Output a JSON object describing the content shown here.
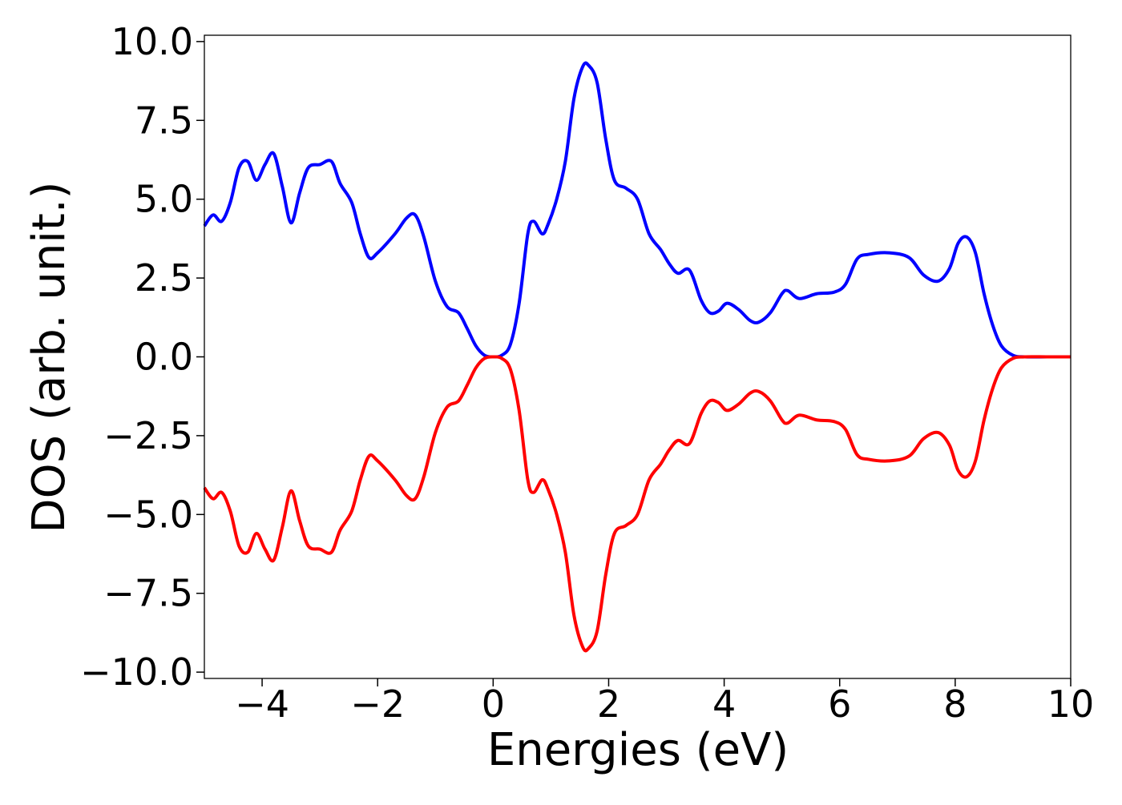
{
  "chart_data": {
    "type": "line",
    "title": "",
    "xlabel": "Energies (eV)",
    "ylabel": "DOS (arb. unit.)",
    "xlim": [
      -5,
      10
    ],
    "ylim": [
      -10.2,
      10.2
    ],
    "grid": false,
    "legend": "none",
    "x_ticks": [
      -4,
      -2,
      0,
      2,
      4,
      6,
      8,
      10
    ],
    "x_tick_labels": [
      "−4",
      "−2",
      "0",
      "2",
      "4",
      "6",
      "8",
      "10"
    ],
    "y_ticks": [
      10,
      7.5,
      5,
      2.5,
      0,
      -2.5,
      -5,
      -7.5,
      -10
    ],
    "y_tick_labels": [
      "10.0",
      "7.5",
      "5.0",
      "2.5",
      "0.0",
      "−2.5",
      "−5.0",
      "−7.5",
      "−10.0"
    ],
    "series": [
      {
        "color": "#0000ff",
        "points": [
          [
            -5.0,
            4.15
          ],
          [
            -4.85,
            4.5
          ],
          [
            -4.7,
            4.3
          ],
          [
            -4.55,
            4.9
          ],
          [
            -4.4,
            6.0
          ],
          [
            -4.25,
            6.2
          ],
          [
            -4.1,
            5.6
          ],
          [
            -3.95,
            6.1
          ],
          [
            -3.8,
            6.45
          ],
          [
            -3.65,
            5.4
          ],
          [
            -3.5,
            4.25
          ],
          [
            -3.35,
            5.2
          ],
          [
            -3.2,
            6.0
          ],
          [
            -3.0,
            6.1
          ],
          [
            -2.8,
            6.2
          ],
          [
            -2.65,
            5.5
          ],
          [
            -2.45,
            4.9
          ],
          [
            -2.3,
            3.9
          ],
          [
            -2.15,
            3.15
          ],
          [
            -2.0,
            3.3
          ],
          [
            -1.7,
            3.9
          ],
          [
            -1.5,
            4.4
          ],
          [
            -1.35,
            4.5
          ],
          [
            -1.2,
            3.8
          ],
          [
            -1.0,
            2.4
          ],
          [
            -0.8,
            1.6
          ],
          [
            -0.6,
            1.4
          ],
          [
            -0.45,
            0.9
          ],
          [
            -0.3,
            0.35
          ],
          [
            -0.15,
            0.05
          ],
          [
            0.0,
            0.0
          ],
          [
            0.15,
            0.05
          ],
          [
            0.3,
            0.4
          ],
          [
            0.45,
            1.7
          ],
          [
            0.6,
            3.9
          ],
          [
            0.7,
            4.3
          ],
          [
            0.85,
            3.9
          ],
          [
            0.95,
            4.2
          ],
          [
            1.1,
            5.0
          ],
          [
            1.25,
            6.2
          ],
          [
            1.4,
            8.2
          ],
          [
            1.55,
            9.2
          ],
          [
            1.65,
            9.25
          ],
          [
            1.8,
            8.7
          ],
          [
            1.95,
            6.9
          ],
          [
            2.1,
            5.6
          ],
          [
            2.3,
            5.35
          ],
          [
            2.5,
            5.0
          ],
          [
            2.7,
            3.9
          ],
          [
            2.9,
            3.4
          ],
          [
            3.05,
            2.95
          ],
          [
            3.2,
            2.65
          ],
          [
            3.4,
            2.75
          ],
          [
            3.6,
            1.8
          ],
          [
            3.75,
            1.4
          ],
          [
            3.9,
            1.45
          ],
          [
            4.05,
            1.7
          ],
          [
            4.25,
            1.5
          ],
          [
            4.45,
            1.15
          ],
          [
            4.6,
            1.1
          ],
          [
            4.8,
            1.4
          ],
          [
            5.0,
            2.0
          ],
          [
            5.1,
            2.1
          ],
          [
            5.3,
            1.85
          ],
          [
            5.6,
            2.0
          ],
          [
            5.9,
            2.05
          ],
          [
            6.1,
            2.3
          ],
          [
            6.3,
            3.1
          ],
          [
            6.5,
            3.25
          ],
          [
            6.85,
            3.3
          ],
          [
            7.2,
            3.15
          ],
          [
            7.45,
            2.6
          ],
          [
            7.7,
            2.4
          ],
          [
            7.9,
            2.8
          ],
          [
            8.05,
            3.6
          ],
          [
            8.2,
            3.8
          ],
          [
            8.35,
            3.3
          ],
          [
            8.5,
            2.0
          ],
          [
            8.65,
            1.0
          ],
          [
            8.8,
            0.35
          ],
          [
            9.0,
            0.05
          ],
          [
            9.2,
            0.0
          ],
          [
            9.6,
            0.0
          ],
          [
            10.0,
            0.0
          ]
        ]
      },
      {
        "color": "#ff0000",
        "points": [
          [
            -5.0,
            -4.15
          ],
          [
            -4.85,
            -4.5
          ],
          [
            -4.7,
            -4.3
          ],
          [
            -4.55,
            -4.9
          ],
          [
            -4.4,
            -6.0
          ],
          [
            -4.25,
            -6.2
          ],
          [
            -4.1,
            -5.6
          ],
          [
            -3.95,
            -6.1
          ],
          [
            -3.8,
            -6.45
          ],
          [
            -3.65,
            -5.4
          ],
          [
            -3.5,
            -4.25
          ],
          [
            -3.35,
            -5.2
          ],
          [
            -3.2,
            -6.0
          ],
          [
            -3.0,
            -6.1
          ],
          [
            -2.8,
            -6.2
          ],
          [
            -2.65,
            -5.5
          ],
          [
            -2.45,
            -4.9
          ],
          [
            -2.3,
            -3.9
          ],
          [
            -2.15,
            -3.15
          ],
          [
            -2.0,
            -3.3
          ],
          [
            -1.7,
            -3.9
          ],
          [
            -1.5,
            -4.4
          ],
          [
            -1.35,
            -4.5
          ],
          [
            -1.2,
            -3.8
          ],
          [
            -1.0,
            -2.4
          ],
          [
            -0.8,
            -1.6
          ],
          [
            -0.6,
            -1.4
          ],
          [
            -0.45,
            -0.9
          ],
          [
            -0.3,
            -0.35
          ],
          [
            -0.15,
            -0.05
          ],
          [
            0.0,
            0.0
          ],
          [
            0.15,
            -0.05
          ],
          [
            0.3,
            -0.4
          ],
          [
            0.45,
            -1.7
          ],
          [
            0.6,
            -3.9
          ],
          [
            0.7,
            -4.3
          ],
          [
            0.85,
            -3.9
          ],
          [
            0.95,
            -4.2
          ],
          [
            1.1,
            -5.0
          ],
          [
            1.25,
            -6.2
          ],
          [
            1.4,
            -8.2
          ],
          [
            1.55,
            -9.2
          ],
          [
            1.65,
            -9.25
          ],
          [
            1.8,
            -8.7
          ],
          [
            1.95,
            -6.9
          ],
          [
            2.1,
            -5.6
          ],
          [
            2.3,
            -5.35
          ],
          [
            2.5,
            -5.0
          ],
          [
            2.7,
            -3.9
          ],
          [
            2.9,
            -3.4
          ],
          [
            3.05,
            -2.95
          ],
          [
            3.2,
            -2.65
          ],
          [
            3.4,
            -2.75
          ],
          [
            3.6,
            -1.8
          ],
          [
            3.75,
            -1.4
          ],
          [
            3.9,
            -1.45
          ],
          [
            4.05,
            -1.7
          ],
          [
            4.25,
            -1.5
          ],
          [
            4.45,
            -1.15
          ],
          [
            4.6,
            -1.1
          ],
          [
            4.8,
            -1.4
          ],
          [
            5.0,
            -2.0
          ],
          [
            5.1,
            -2.1
          ],
          [
            5.3,
            -1.85
          ],
          [
            5.6,
            -2.0
          ],
          [
            5.9,
            -2.05
          ],
          [
            6.1,
            -2.3
          ],
          [
            6.3,
            -3.1
          ],
          [
            6.5,
            -3.25
          ],
          [
            6.85,
            -3.3
          ],
          [
            7.2,
            -3.15
          ],
          [
            7.45,
            -2.6
          ],
          [
            7.7,
            -2.4
          ],
          [
            7.9,
            -2.8
          ],
          [
            8.05,
            -3.6
          ],
          [
            8.2,
            -3.8
          ],
          [
            8.35,
            -3.3
          ],
          [
            8.5,
            -2.0
          ],
          [
            8.65,
            -1.0
          ],
          [
            8.8,
            -0.35
          ],
          [
            9.0,
            -0.05
          ],
          [
            9.2,
            0.0
          ],
          [
            9.6,
            0.0
          ],
          [
            10.0,
            0.0
          ]
        ]
      }
    ]
  }
}
